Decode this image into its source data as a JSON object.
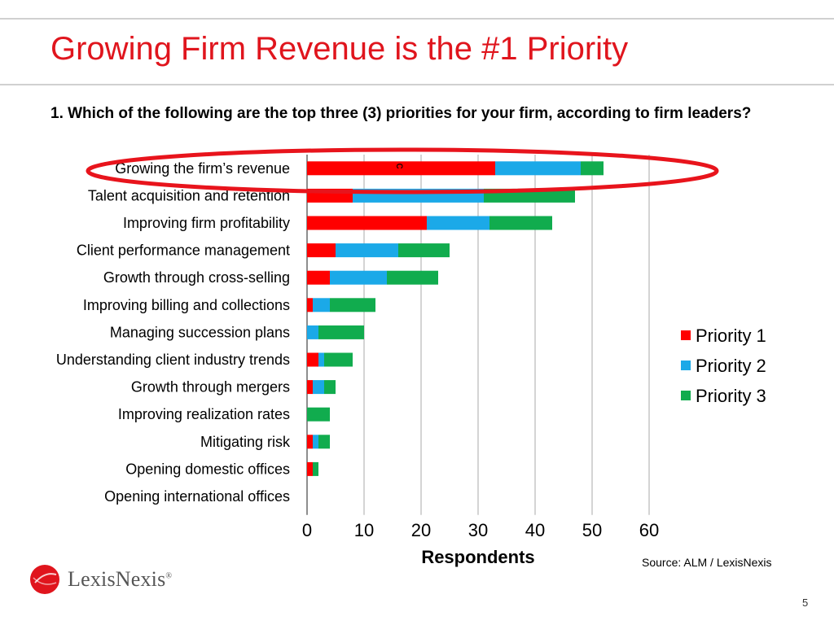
{
  "slide": {
    "title": "Growing Firm Revenue is the #1 Priority",
    "question": "1. Which of the following are the top three (3) priorities for your firm, according to firm leaders?",
    "source": "Source: ALM / LexisNexis",
    "page_number": "5",
    "logo_text": "LexisNexis",
    "logo_mark": "®",
    "highlight_mark": "c"
  },
  "colors": {
    "title": "#e0151d",
    "priority1": "#ff0000",
    "priority2": "#1ba9e8",
    "priority3": "#11ac4e",
    "highlight_ellipse": "#e8141c"
  },
  "chart_data": {
    "type": "bar",
    "orientation": "horizontal",
    "stacked": true,
    "categories": [
      "Growing the firm’s revenue",
      "Talent acquisition and retention",
      "Improving firm profitability",
      "Client performance management",
      "Growth through cross-selling",
      "Improving billing and collections",
      "Managing succession plans",
      "Understanding client industry trends",
      "Growth through mergers",
      "Improving realization rates",
      "Mitigating risk",
      "Opening domestic offices",
      "Opening international offices"
    ],
    "series": [
      {
        "name": "Priority 1",
        "color": "#ff0000",
        "values": [
          33,
          8,
          21,
          5,
          4,
          1,
          0,
          2,
          1,
          0,
          1,
          1,
          0
        ]
      },
      {
        "name": "Priority 2",
        "color": "#1ba9e8",
        "values": [
          15,
          23,
          11,
          11,
          10,
          3,
          2,
          1,
          2,
          0,
          1,
          0,
          0
        ]
      },
      {
        "name": "Priority 3",
        "color": "#11ac4e",
        "values": [
          4,
          16,
          11,
          9,
          9,
          8,
          8,
          5,
          2,
          4,
          2,
          1,
          0
        ]
      }
    ],
    "xlabel": "Respondents",
    "xlim": [
      0,
      60
    ],
    "xticks": [
      0,
      10,
      20,
      30,
      40,
      50,
      60
    ],
    "grid": true,
    "legend_position": "right"
  }
}
